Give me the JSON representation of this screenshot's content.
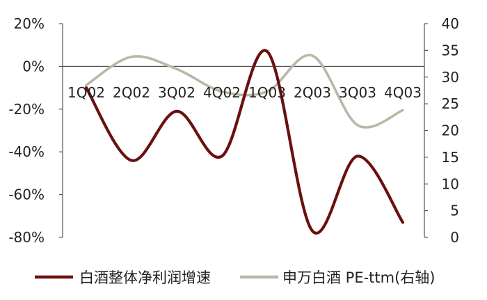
{
  "chart_data": {
    "type": "line",
    "categories": [
      "1Q02",
      "2Q02",
      "3Q02",
      "4Q02",
      "1Q03",
      "2Q03",
      "3Q03",
      "4Q03"
    ],
    "series": [
      {
        "name": "白酒整体净利润增速",
        "axis": "left",
        "color": "#6b0f0f",
        "values": [
          -0.1,
          -0.44,
          -0.21,
          -0.42,
          0.07,
          -0.77,
          -0.42,
          -0.73
        ]
      },
      {
        "name": "申万白酒 PE-ttm(右轴)",
        "axis": "right",
        "color": "#b7b8a6",
        "values": [
          28.5,
          33.8,
          31.5,
          27.3,
          27.3,
          34.0,
          21.0,
          23.8
        ]
      }
    ],
    "y_left": {
      "min": -0.8,
      "max": 0.2,
      "ticks": [
        "20%",
        "0%",
        "-20%",
        "-40%",
        "-60%",
        "-80%"
      ]
    },
    "y_right": {
      "min": 0,
      "max": 40,
      "ticks": [
        "40",
        "35",
        "30",
        "25",
        "20",
        "15",
        "10",
        "5",
        "0"
      ]
    },
    "grid": false,
    "legend": "bottom"
  }
}
